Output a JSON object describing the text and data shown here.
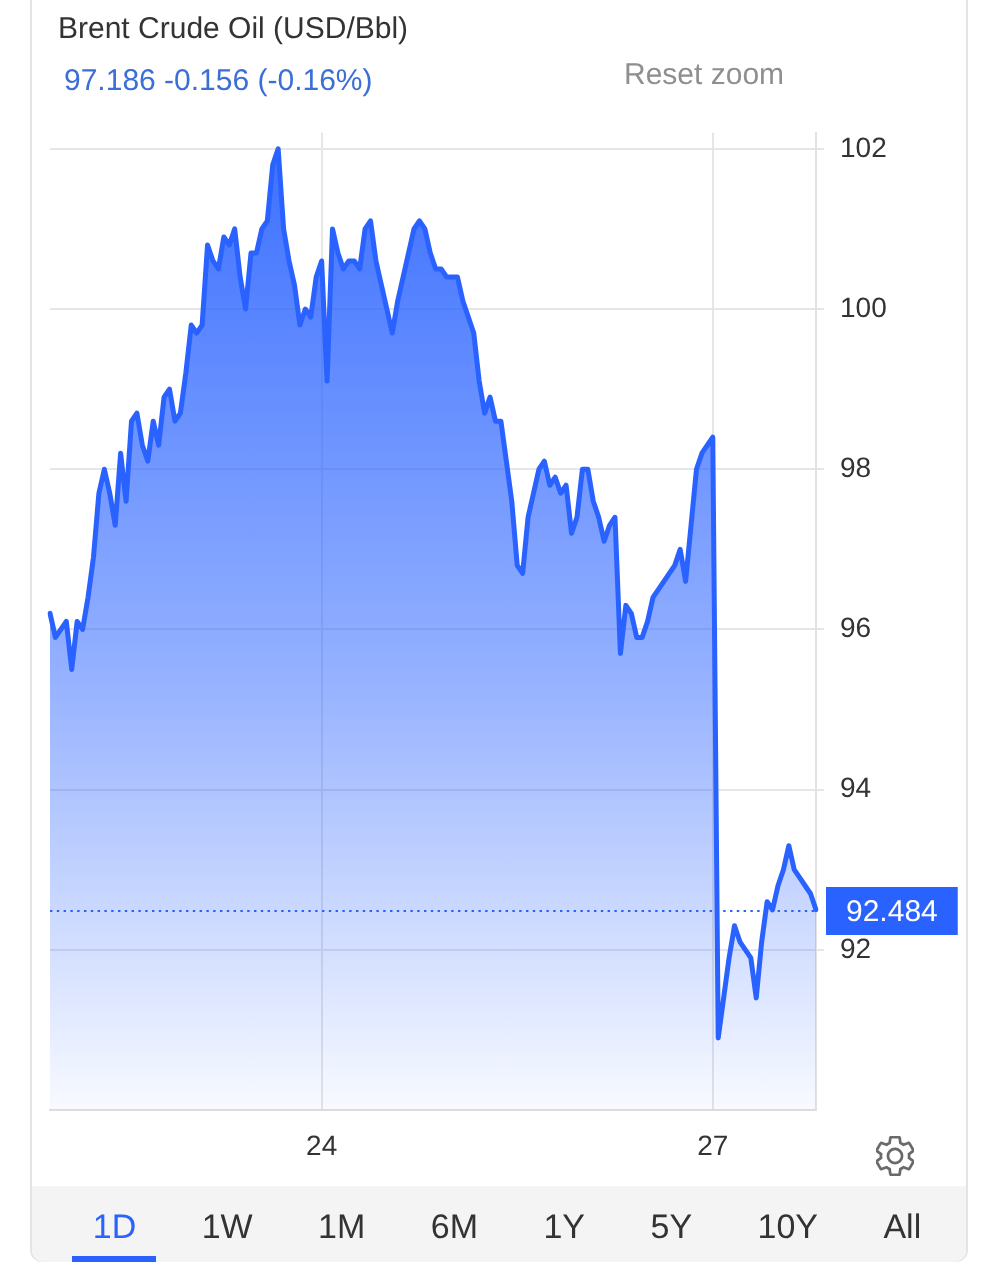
{
  "chart_data": {
    "type": "area",
    "title": "Brent Crude Oil (USD/Bbl)",
    "subtitle": "97.186 -0.156 (-0.16%)",
    "annotations": [
      "Reset zoom",
      "1D",
      "1W",
      "1M",
      "6M",
      "1Y",
      "5Y",
      "10Y",
      "All"
    ],
    "categories": [
      null,
      null,
      null,
      null,
      null,
      null,
      null,
      null,
      null,
      null,
      null,
      null,
      null,
      null,
      null,
      null,
      null,
      null,
      null,
      null,
      null,
      null,
      null,
      null,
      null,
      null,
      null,
      null,
      null,
      null,
      null,
      null,
      null,
      null,
      null,
      null,
      null,
      null,
      null,
      null,
      null,
      null,
      null,
      null,
      null,
      null,
      null,
      null,
      null,
      null,
      "24",
      null,
      null,
      null,
      null,
      null,
      null,
      null,
      null,
      null,
      null,
      null,
      null,
      null,
      null,
      null,
      null,
      null,
      null,
      null,
      null,
      null,
      null,
      null,
      null,
      null,
      null,
      null,
      null,
      null,
      null,
      null,
      null,
      null,
      null,
      null,
      null,
      null,
      null,
      null,
      null,
      null,
      null,
      null,
      null,
      null,
      null,
      null,
      null,
      null,
      null,
      null,
      null,
      null,
      null,
      null,
      null,
      null,
      null,
      null,
      null,
      null,
      null,
      null,
      null,
      null,
      null,
      null,
      null,
      null,
      null,
      null,
      "27",
      null,
      null,
      null,
      null,
      null,
      null,
      null,
      null,
      null,
      null,
      null,
      null,
      null,
      null,
      null,
      null,
      null,
      null,
      null
    ],
    "values": [
      96.2,
      95.9,
      96.0,
      96.1,
      95.5,
      96.1,
      96.0,
      96.4,
      96.9,
      97.7,
      98.0,
      97.7,
      97.3,
      98.2,
      97.6,
      98.6,
      98.7,
      98.3,
      98.1,
      98.6,
      98.3,
      98.9,
      99.0,
      98.6,
      98.7,
      99.2,
      99.8,
      99.7,
      99.8,
      100.8,
      100.6,
      100.5,
      100.9,
      100.8,
      101.0,
      100.4,
      100.0,
      100.7,
      100.7,
      101.0,
      101.1,
      101.8,
      102.0,
      101.0,
      100.6,
      100.3,
      99.8,
      100.0,
      99.9,
      100.4,
      100.6,
      99.1,
      101.0,
      100.7,
      100.5,
      100.6,
      100.6,
      100.5,
      101.0,
      101.1,
      100.6,
      100.3,
      100.0,
      99.7,
      100.1,
      100.4,
      100.7,
      101.0,
      101.1,
      101.0,
      100.7,
      100.5,
      100.5,
      100.4,
      100.4,
      100.4,
      100.1,
      99.9,
      99.7,
      99.1,
      98.7,
      98.9,
      98.6,
      98.6,
      98.1,
      97.6,
      96.8,
      96.7,
      97.4,
      97.7,
      98.0,
      98.1,
      97.8,
      97.9,
      97.7,
      97.8,
      97.2,
      97.4,
      98.0,
      98.0,
      97.6,
      97.4,
      97.1,
      97.3,
      97.4,
      95.7,
      96.3,
      96.2,
      95.9,
      95.9,
      96.1,
      96.4,
      96.5,
      96.6,
      96.7,
      96.8,
      97.0,
      96.6,
      97.3,
      98.0,
      98.2,
      98.3,
      98.4,
      90.9,
      91.4,
      91.9,
      92.3,
      92.1,
      92.0,
      91.9,
      91.4,
      92.1,
      92.6,
      92.5,
      92.8,
      93.0,
      93.3,
      93.0,
      92.9,
      92.8,
      92.7,
      92.5
    ],
    "color": "#2962ff",
    "ylim": [
      90,
      102.2
    ],
    "yticks": [
      92,
      94,
      96,
      98,
      100,
      102
    ],
    "grid": true,
    "legend": false,
    "marker": "none",
    "ref_lines": [
      {
        "axis": "y",
        "value": 92.484,
        "label": "92.484",
        "color": "#2962ff",
        "line_style": "dotted"
      }
    ]
  }
}
